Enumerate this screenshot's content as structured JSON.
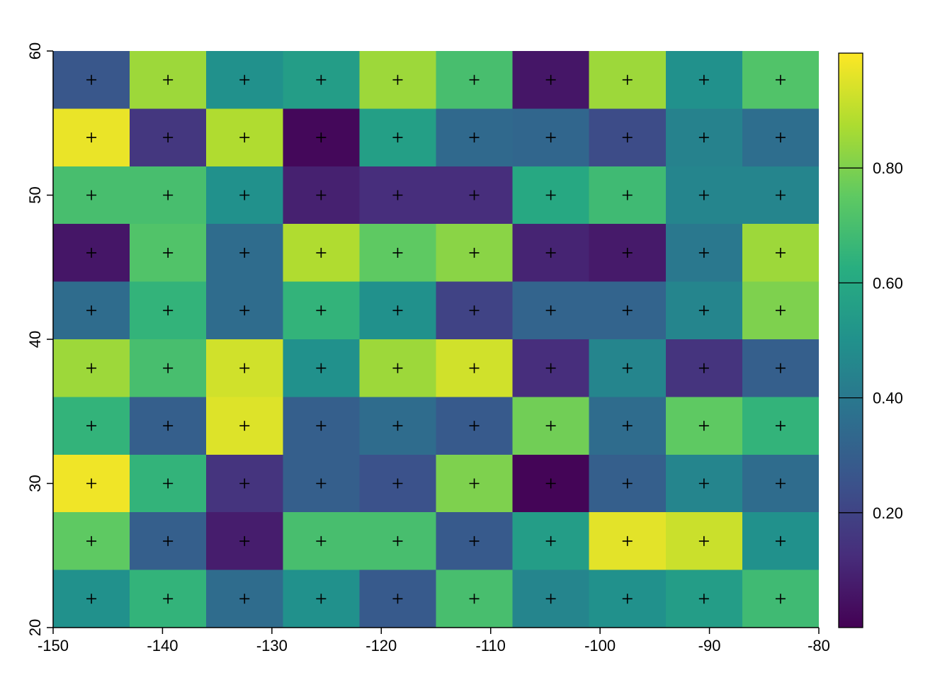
{
  "figure": {
    "background": "#ffffff",
    "axis_color": "#000000",
    "marker_color": "#000000"
  },
  "chart_data": {
    "type": "heatmap",
    "title": "",
    "xlabel": "",
    "ylabel": "",
    "xlim": [
      -150,
      -80
    ],
    "ylim": [
      20,
      60
    ],
    "x_ticks": [
      -150,
      -140,
      -130,
      -120,
      -110,
      -100,
      -90,
      -80
    ],
    "y_ticks": [
      20,
      30,
      40,
      50,
      60
    ],
    "x_centers": [
      -146.5,
      -139.5,
      -132.5,
      -125.5,
      -118.5,
      -111.5,
      -104.5,
      -97.5,
      -90.5,
      -83.5
    ],
    "y_centers_top_to_bottom": [
      58,
      54,
      50,
      46,
      42,
      38,
      34,
      30,
      26,
      22
    ],
    "zlim": [
      0,
      1
    ],
    "cell_marker": "+",
    "colormap": "viridis",
    "viridis_stops": [
      "#440154",
      "#472d7b",
      "#3b528b",
      "#2c728e",
      "#21918c",
      "#28ae80",
      "#5ec962",
      "#addc30",
      "#fde725"
    ],
    "colorbar": {
      "position": "right",
      "tick_values": [
        0.2,
        0.4,
        0.6,
        0.8
      ],
      "tick_labels": [
        "0.20",
        "0.40",
        "0.60",
        "0.80"
      ]
    },
    "matrix_rows_top_to_bottom": [
      [
        0.27,
        0.85,
        0.5,
        0.55,
        0.85,
        0.7,
        0.06,
        0.85,
        0.5,
        0.72
      ],
      [
        0.97,
        0.16,
        0.88,
        0.02,
        0.56,
        0.34,
        0.33,
        0.23,
        0.44,
        0.36
      ],
      [
        0.7,
        0.7,
        0.5,
        0.09,
        0.13,
        0.13,
        0.6,
        0.68,
        0.45,
        0.45
      ],
      [
        0.06,
        0.72,
        0.35,
        0.88,
        0.75,
        0.82,
        0.1,
        0.07,
        0.4,
        0.85
      ],
      [
        0.35,
        0.65,
        0.35,
        0.65,
        0.5,
        0.2,
        0.32,
        0.32,
        0.45,
        0.8
      ],
      [
        0.85,
        0.7,
        0.93,
        0.5,
        0.85,
        0.93,
        0.13,
        0.45,
        0.15,
        0.3
      ],
      [
        0.65,
        0.3,
        0.95,
        0.3,
        0.35,
        0.28,
        0.78,
        0.35,
        0.75,
        0.65
      ],
      [
        0.98,
        0.65,
        0.15,
        0.3,
        0.25,
        0.8,
        0.01,
        0.3,
        0.45,
        0.35
      ],
      [
        0.75,
        0.3,
        0.08,
        0.7,
        0.7,
        0.28,
        0.55,
        0.96,
        0.92,
        0.5
      ],
      [
        0.5,
        0.65,
        0.35,
        0.5,
        0.28,
        0.7,
        0.45,
        0.5,
        0.55,
        0.68
      ]
    ]
  }
}
